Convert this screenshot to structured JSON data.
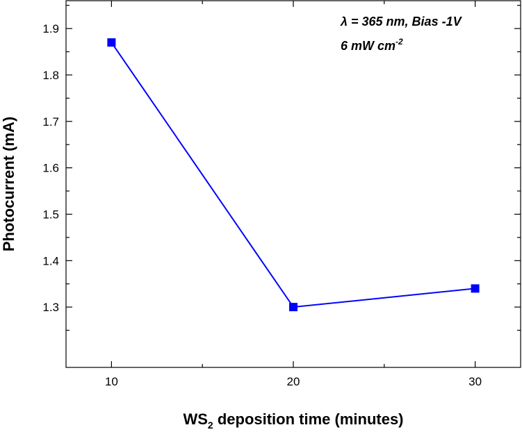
{
  "chart_data": {
    "type": "line",
    "x": [
      10,
      20,
      30
    ],
    "series": [
      {
        "values": [
          1.87,
          1.3,
          1.34
        ],
        "color": "#0000ff",
        "marker": "square"
      }
    ],
    "xlabel_main": "WS",
    "xlabel_sub": "2",
    "xlabel_rest": " deposition time (minutes)",
    "ylabel": "Photocurrent (mA)",
    "xlim": [
      7.5,
      32.5
    ],
    "ylim": [
      1.17,
      1.96
    ],
    "xticks": [
      10,
      20,
      30
    ],
    "xtick_labels": [
      "10",
      "20",
      "30"
    ],
    "yticks": [
      1.3,
      1.4,
      1.5,
      1.6,
      1.7,
      1.8,
      1.9
    ],
    "ytick_labels": [
      "1.3",
      "1.4",
      "1.5",
      "1.6",
      "1.7",
      "1.8",
      "1.9"
    ],
    "annotation_line1": "λ = 365 nm, Bias -1V",
    "annotation_line2_main": "6 mW cm",
    "annotation_line2_sup": "-2",
    "grid": false,
    "legend": "none"
  }
}
